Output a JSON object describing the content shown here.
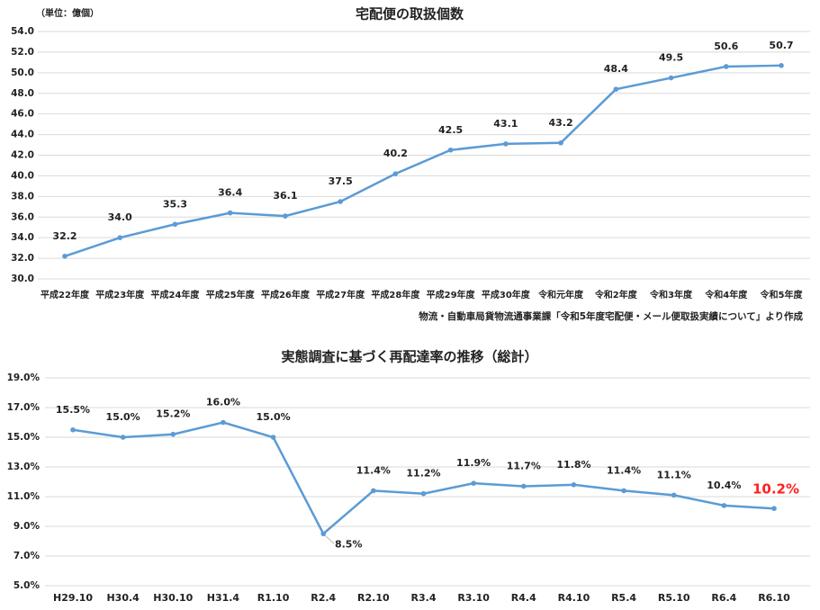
{
  "chart_data": [
    {
      "type": "line",
      "title": "宅配便の取扱個数",
      "unit_label": "（単位：億個）",
      "categories": [
        "平成22年度",
        "平成23年度",
        "平成24年度",
        "平成25年度",
        "平成26年度",
        "平成27年度",
        "平成28年度",
        "平成29年度",
        "平成30年度",
        "令和元年度",
        "令和2年度",
        "令和3年度",
        "令和4年度",
        "令和5年度"
      ],
      "values": [
        32.2,
        34.0,
        35.3,
        36.4,
        36.1,
        37.5,
        40.2,
        42.5,
        43.1,
        43.2,
        48.4,
        49.5,
        50.6,
        50.7
      ],
      "value_labels": [
        "32.2",
        "34.0",
        "35.3",
        "36.4",
        "36.1",
        "37.5",
        "40.2",
        "42.5",
        "43.1",
        "43.2",
        "48.4",
        "49.5",
        "50.6",
        "50.7"
      ],
      "color": "#5b9bd5",
      "ylim": [
        30,
        54
      ],
      "yticks": [
        {
          "value": 30,
          "label": "30.0"
        },
        {
          "value": 32,
          "label": "32.0"
        },
        {
          "value": 34,
          "label": "34.0"
        },
        {
          "value": 36,
          "label": "36.0"
        },
        {
          "value": 38,
          "label": "38.0"
        },
        {
          "value": 40,
          "label": "40.0"
        },
        {
          "value": 42,
          "label": "42.0"
        },
        {
          "value": 44,
          "label": "44.0"
        },
        {
          "value": 46,
          "label": "46.0"
        },
        {
          "value": 48,
          "label": "48.0"
        },
        {
          "value": 50,
          "label": "50.0"
        },
        {
          "value": 52,
          "label": "52.0"
        },
        {
          "value": 54,
          "label": "54.0"
        }
      ],
      "grid": true,
      "source": "物流・自動車局貨物流通事業課「令和5年度宅配便・メール便取扱実績について」より作成"
    },
    {
      "type": "line",
      "title": "実態調査に基づく再配達率の推移（総計）",
      "categories": [
        "H29.10",
        "H30.4",
        "H30.10",
        "H31.4",
        "R1.10",
        "R2.4",
        "R2.10",
        "R3.4",
        "R3.10",
        "R4.4",
        "R4.10",
        "R5.4",
        "R5.10",
        "R6.4",
        "R6.10"
      ],
      "values": [
        15.5,
        15.0,
        15.2,
        16.0,
        15.0,
        8.5,
        11.4,
        11.2,
        11.9,
        11.7,
        11.8,
        11.4,
        11.1,
        10.4,
        10.2
      ],
      "value_labels": [
        "15.5%",
        "15.0%",
        "15.2%",
        "16.0%",
        "15.0%",
        "8.5%",
        "11.4%",
        "11.2%",
        "11.9%",
        "11.7%",
        "11.8%",
        "11.4%",
        "11.1%",
        "10.4%",
        "10.2%"
      ],
      "color": "#5b9bd5",
      "ylim": [
        5,
        19
      ],
      "yticks": [
        {
          "value": 5,
          "label": "5.0%"
        },
        {
          "value": 7,
          "label": "7.0%"
        },
        {
          "value": 9,
          "label": "9.0%"
        },
        {
          "value": 11,
          "label": "11.0%"
        },
        {
          "value": 13,
          "label": "13.0%"
        },
        {
          "value": 15,
          "label": "15.0%"
        },
        {
          "value": 17,
          "label": "17.0%"
        },
        {
          "value": 19,
          "label": "19.0%"
        }
      ],
      "grid": true
    }
  ]
}
